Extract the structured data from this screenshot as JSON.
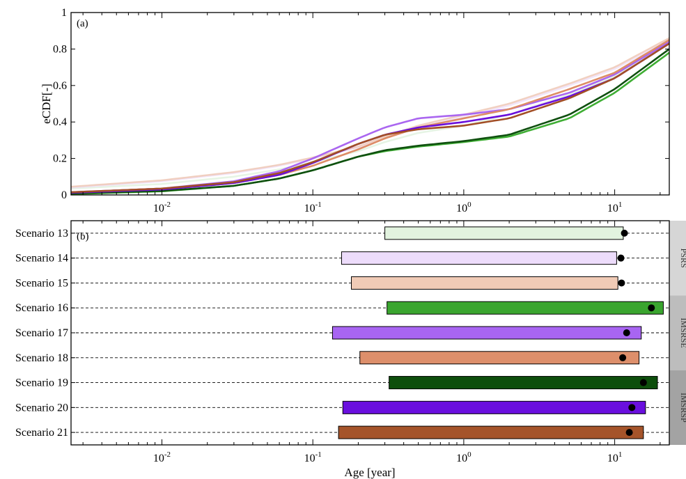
{
  "chart_data": [
    {
      "type": "line",
      "panel_tag": "(a)",
      "xscale": "log",
      "xlim": [
        0.0025,
        23
      ],
      "ylim": [
        0,
        1
      ],
      "ylabel": "eCDF[-]",
      "yticks": [
        "0",
        "0.2",
        "0.4",
        "0.6",
        "0.8",
        "1"
      ],
      "xticks": [
        {
          "base": "10",
          "exp": "-2"
        },
        {
          "base": "10",
          "exp": "-1"
        },
        {
          "base": "10",
          "exp": "0"
        },
        {
          "base": "10",
          "exp": "1"
        }
      ],
      "grid": false,
      "x": [
        0.0025,
        0.01,
        0.03,
        0.06,
        0.1,
        0.2,
        0.3,
        0.5,
        1,
        2,
        5,
        10,
        23
      ],
      "series": [
        {
          "color": "#dcefd8",
          "opacity": 0.7,
          "y": [
            0.035,
            0.06,
            0.1,
            0.14,
            0.18,
            0.24,
            0.29,
            0.34,
            0.38,
            0.44,
            0.55,
            0.65,
            0.84
          ]
        },
        {
          "color": "#eddcf8",
          "opacity": 0.7,
          "y": [
            0.04,
            0.075,
            0.12,
            0.16,
            0.2,
            0.26,
            0.31,
            0.37,
            0.43,
            0.49,
            0.6,
            0.69,
            0.85
          ]
        },
        {
          "color": "#efc8b6",
          "opacity": 0.85,
          "y": [
            0.045,
            0.08,
            0.125,
            0.165,
            0.205,
            0.265,
            0.32,
            0.38,
            0.44,
            0.5,
            0.61,
            0.7,
            0.86
          ]
        },
        {
          "color": "#3fae34",
          "opacity": 1,
          "y": [
            0.005,
            0.02,
            0.05,
            0.09,
            0.135,
            0.21,
            0.24,
            0.265,
            0.29,
            0.32,
            0.42,
            0.56,
            0.78
          ]
        },
        {
          "color": "#aa66f0",
          "opacity": 1,
          "y": [
            0.015,
            0.035,
            0.075,
            0.13,
            0.2,
            0.31,
            0.37,
            0.42,
            0.44,
            0.47,
            0.56,
            0.66,
            0.84
          ]
        },
        {
          "color": "#dd8c66",
          "opacity": 1,
          "y": [
            0.01,
            0.03,
            0.065,
            0.11,
            0.16,
            0.25,
            0.31,
            0.37,
            0.42,
            0.47,
            0.58,
            0.67,
            0.85
          ]
        },
        {
          "color": "#0f4f0f",
          "opacity": 1,
          "y": [
            0.008,
            0.022,
            0.05,
            0.09,
            0.135,
            0.21,
            0.245,
            0.27,
            0.295,
            0.33,
            0.44,
            0.58,
            0.8
          ]
        },
        {
          "color": "#6a0fdc",
          "opacity": 1,
          "y": [
            0.012,
            0.03,
            0.065,
            0.11,
            0.175,
            0.28,
            0.33,
            0.37,
            0.4,
            0.44,
            0.54,
            0.64,
            0.83
          ]
        },
        {
          "color": "#a24e26",
          "opacity": 1,
          "y": [
            0.015,
            0.035,
            0.07,
            0.12,
            0.18,
            0.28,
            0.33,
            0.36,
            0.38,
            0.42,
            0.53,
            0.64,
            0.83
          ]
        }
      ]
    },
    {
      "type": "bar",
      "panel_tag": "(b)",
      "orientation": "horizontal-range",
      "xscale": "log",
      "xlim": [
        0.0025,
        23
      ],
      "xlabel": "Age [year]",
      "xticks": [
        {
          "base": "10",
          "exp": "-2"
        },
        {
          "base": "10",
          "exp": "-1"
        },
        {
          "base": "10",
          "exp": "0"
        },
        {
          "base": "10",
          "exp": "1"
        }
      ],
      "categories": [
        "Scenario 13",
        "Scenario 14",
        "Scenario 15",
        "Scenario 16",
        "Scenario 17",
        "Scenario 18",
        "Scenario 19",
        "Scenario 20",
        "Scenario 21"
      ],
      "ranges": [
        {
          "low": 0.3,
          "high": 11.4,
          "median": 11.6,
          "color": "#e2f3df"
        },
        {
          "low": 0.155,
          "high": 10.3,
          "median": 11.0,
          "color": "#eddcfb"
        },
        {
          "low": 0.18,
          "high": 10.5,
          "median": 11.1,
          "color": "#f0cbb6"
        },
        {
          "low": 0.31,
          "high": 21.0,
          "median": 17.5,
          "color": "#3aa52f"
        },
        {
          "low": 0.135,
          "high": 15.0,
          "median": 12.0,
          "color": "#a865f2"
        },
        {
          "low": 0.205,
          "high": 14.5,
          "median": 11.3,
          "color": "#dd8f6b"
        },
        {
          "low": 0.32,
          "high": 19.2,
          "median": 15.5,
          "color": "#0d4e0c"
        },
        {
          "low": 0.158,
          "high": 16.0,
          "median": 13.0,
          "color": "#6a0fde"
        },
        {
          "low": 0.148,
          "high": 15.5,
          "median": 12.5,
          "color": "#a5542a"
        }
      ],
      "groups": [
        {
          "label": "PSRS",
          "color": "#d6d6d6",
          "from": 0,
          "to": 2
        },
        {
          "label": "IMSRSE",
          "color": "#bdbdbd",
          "from": 3,
          "to": 5
        },
        {
          "label": "IMSRSP",
          "color": "#a3a3a3",
          "from": 6,
          "to": 8
        }
      ]
    }
  ]
}
